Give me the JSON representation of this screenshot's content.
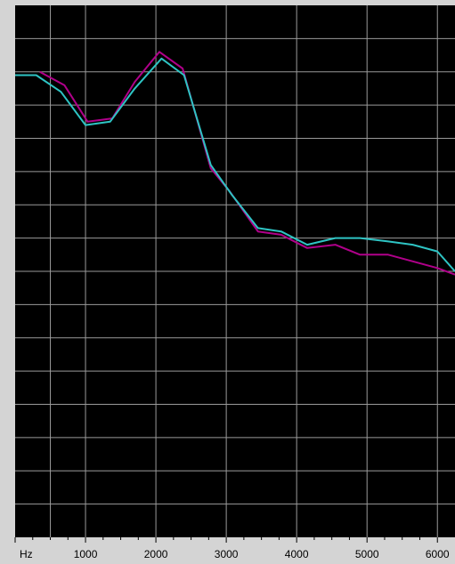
{
  "chart_data": {
    "type": "line",
    "title": "",
    "xlabel": "",
    "ylabel": "",
    "x_unit_label": "Hz",
    "x_tick_labels": [
      "1000",
      "2000",
      "3000",
      "4000",
      "5000",
      "6000"
    ],
    "x_ticks": [
      1000,
      2000,
      3000,
      4000,
      5000,
      6000
    ],
    "xlim": [
      0,
      6250
    ],
    "ylim": [
      0,
      16
    ],
    "grid": true,
    "legend": "none",
    "colors": {
      "background": "#000000",
      "grid": "#9a9a9a",
      "frame": "#d4d4d4",
      "series_magenta": "#b0008a",
      "series_cyan": "#2ec4c4"
    },
    "series": [
      {
        "color": "magenta",
        "x": [
          350,
          700,
          1030,
          1380,
          1700,
          2050,
          2380,
          2780,
          3050,
          3450,
          3780,
          4150,
          4550,
          4900,
          5300,
          5650,
          6000,
          6250
        ],
        "y": [
          14.0,
          13.6,
          12.5,
          12.6,
          13.7,
          14.6,
          14.1,
          11.1,
          10.4,
          9.2,
          9.1,
          8.7,
          8.8,
          8.5,
          8.5,
          8.3,
          8.1,
          7.9
        ]
      },
      {
        "color": "cyan",
        "x": [
          0,
          300,
          650,
          1000,
          1350,
          1700,
          2080,
          2400,
          2780,
          3080,
          3450,
          3780,
          4150,
          4550,
          4900,
          5300,
          5650,
          6000,
          6250
        ],
        "y": [
          13.9,
          13.9,
          13.4,
          12.4,
          12.5,
          13.5,
          14.4,
          13.9,
          11.2,
          10.3,
          9.3,
          9.2,
          8.8,
          9.0,
          9.0,
          8.9,
          8.8,
          8.6,
          8.0
        ]
      }
    ]
  }
}
